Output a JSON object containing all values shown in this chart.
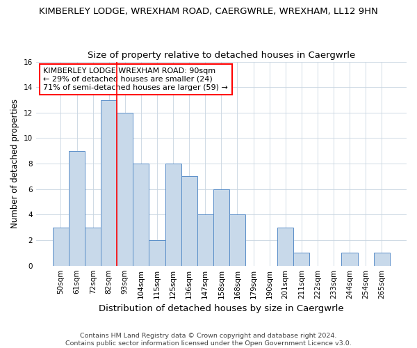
{
  "title_main": "KIMBERLEY LODGE, WREXHAM ROAD, CAERGWRLE, WREXHAM, LL12 9HN",
  "title_sub": "Size of property relative to detached houses in Caergwrle",
  "xlabel": "Distribution of detached houses by size in Caergwrle",
  "ylabel": "Number of detached properties",
  "categories": [
    "50sqm",
    "61sqm",
    "72sqm",
    "82sqm",
    "93sqm",
    "104sqm",
    "115sqm",
    "125sqm",
    "136sqm",
    "147sqm",
    "158sqm",
    "168sqm",
    "179sqm",
    "190sqm",
    "201sqm",
    "211sqm",
    "222sqm",
    "233sqm",
    "244sqm",
    "254sqm",
    "265sqm"
  ],
  "values": [
    3,
    9,
    3,
    13,
    12,
    8,
    2,
    8,
    7,
    4,
    6,
    4,
    0,
    0,
    3,
    1,
    0,
    0,
    1,
    0,
    1
  ],
  "bar_color": "#c8d9ea",
  "bar_edge_color": "#5b8fc9",
  "red_line_x": 3.5,
  "annotation_line1": "KIMBERLEY LODGE WREXHAM ROAD: 90sqm",
  "annotation_line2": "← 29% of detached houses are smaller (24)",
  "annotation_line3": "71% of semi-detached houses are larger (59) →",
  "annotation_box_color": "white",
  "annotation_box_edge": "red",
  "ylim": [
    0,
    16
  ],
  "yticks": [
    0,
    2,
    4,
    6,
    8,
    10,
    12,
    14,
    16
  ],
  "footer_line1": "Contains HM Land Registry data © Crown copyright and database right 2024.",
  "footer_line2": "Contains public sector information licensed under the Open Government Licence v3.0.",
  "title_fontsize": 9.5,
  "subtitle_fontsize": 9.5,
  "xlabel_fontsize": 9.5,
  "ylabel_fontsize": 8.5,
  "tick_fontsize": 7.5,
  "annotation_fontsize": 8,
  "footer_fontsize": 6.8
}
